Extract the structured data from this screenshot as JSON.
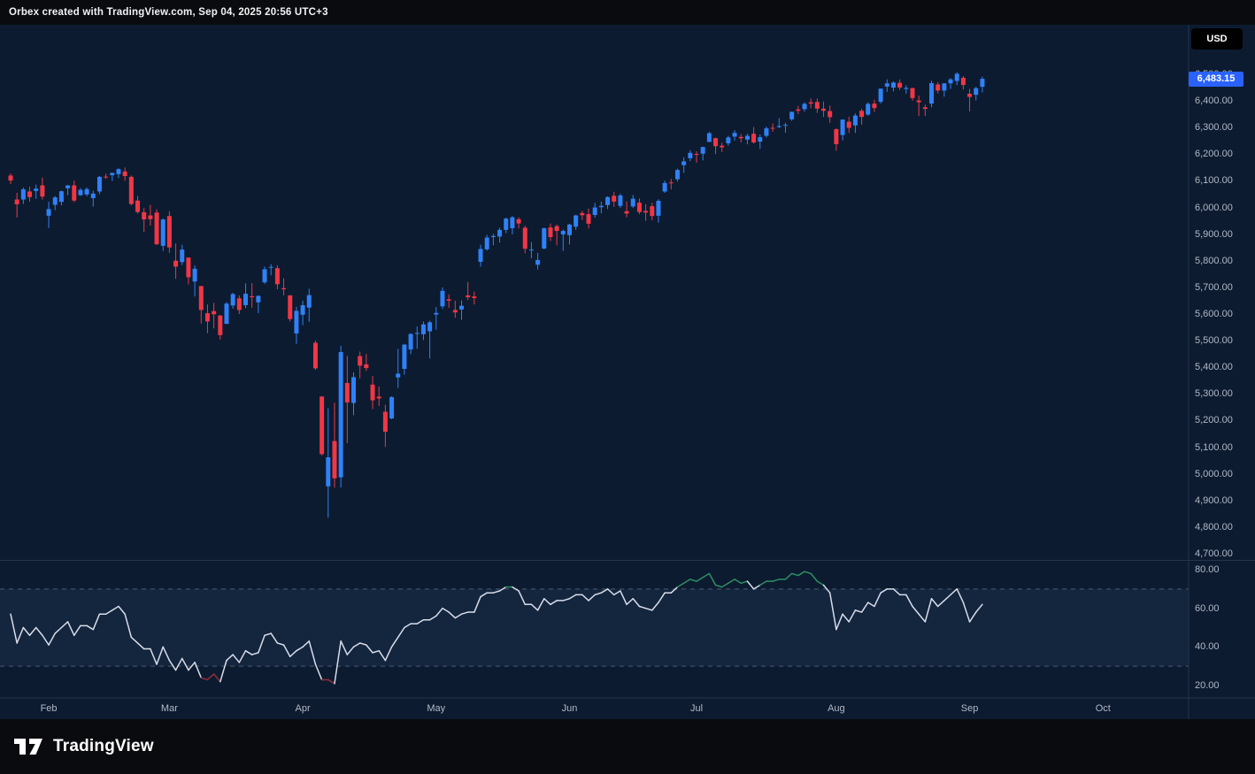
{
  "topbar": {
    "title": "Orbex created with TradingView.com, Sep 04, 2025 20:56 UTC+3"
  },
  "currency_button": {
    "label": "USD"
  },
  "price_badge": {
    "value": "6,483.15"
  },
  "footer": {
    "brand": "TradingView"
  },
  "colors": {
    "chart_bg": "#0c1b30",
    "frame_bg": "#0a0b0e",
    "up": "#2f81f7",
    "down": "#f23645",
    "axis_text": "#b2b8c6",
    "divider": "#28334c",
    "badge_bg": "#2962ff",
    "rsi_line": "#d8dde9",
    "rsi_over": "#2e8f63",
    "rsi_under": "#8f2e3c",
    "rsi_band": "rgba(130,170,255,0.07)",
    "dashed": "#8b93a6"
  },
  "chart_data": {
    "type": "candlestick",
    "title": "",
    "currency": "USD",
    "last_close": 6483.15,
    "price_axis": {
      "ylim_visible": [
        4700,
        6500
      ],
      "ticks": [
        {
          "label": "6,500.00",
          "value": 6500
        },
        {
          "label": "6,400.00",
          "value": 6400
        },
        {
          "label": "6,300.00",
          "value": 6300
        },
        {
          "label": "6,200.00",
          "value": 6200
        },
        {
          "label": "6,100.00",
          "value": 6100
        },
        {
          "label": "6,000.00",
          "value": 6000
        },
        {
          "label": "5,900.00",
          "value": 5900
        },
        {
          "label": "5,800.00",
          "value": 5800
        },
        {
          "label": "5,700.00",
          "value": 5700
        },
        {
          "label": "5,600.00",
          "value": 5600
        },
        {
          "label": "5,500.00",
          "value": 5500
        },
        {
          "label": "5,400.00",
          "value": 5400
        },
        {
          "label": "5,300.00",
          "value": 5300
        },
        {
          "label": "5,200.00",
          "value": 5200
        },
        {
          "label": "5,100.00",
          "value": 5100
        },
        {
          "label": "5,000.00",
          "value": 5000
        },
        {
          "label": "4,900.00",
          "value": 4900
        },
        {
          "label": "4,800.00",
          "value": 4800
        },
        {
          "label": "4,700.00",
          "value": 4700
        }
      ]
    },
    "time_axis": {
      "months": [
        {
          "label": "Feb",
          "index": 6
        },
        {
          "label": "Mar",
          "index": 25
        },
        {
          "label": "Apr",
          "index": 46
        },
        {
          "label": "May",
          "index": 67
        },
        {
          "label": "Jun",
          "index": 88
        },
        {
          "label": "Jul",
          "index": 108
        },
        {
          "label": "Aug",
          "index": 130
        },
        {
          "label": "Sep",
          "index": 151
        },
        {
          "label": "Oct",
          "index": 172
        }
      ]
    },
    "rsi_axis": {
      "ticks": [
        {
          "label": "80.00",
          "value": 80
        },
        {
          "label": "60.00",
          "value": 60
        },
        {
          "label": "40.00",
          "value": 40
        },
        {
          "label": "20.00",
          "value": 20
        }
      ],
      "upper_band": 70,
      "lower_band": 30
    },
    "candles": [
      [
        6120,
        6128,
        6088,
        6101
      ],
      [
        6030,
        6055,
        5962,
        6012
      ],
      [
        6030,
        6075,
        6013,
        6068
      ],
      [
        6060,
        6078,
        6022,
        6039
      ],
      [
        6062,
        6086,
        6032,
        6071
      ],
      [
        6083,
        6112,
        6030,
        6041
      ],
      [
        5969,
        6022,
        5923,
        5994
      ],
      [
        6010,
        6043,
        5990,
        6038
      ],
      [
        6021,
        6063,
        6008,
        6061
      ],
      [
        6072,
        6084,
        6046,
        6083
      ],
      [
        6083,
        6101,
        6020,
        6026
      ],
      [
        6046,
        6073,
        6044,
        6066
      ],
      [
        6049,
        6075,
        6042,
        6069
      ],
      [
        6035,
        6063,
        6003,
        6052
      ],
      [
        6060,
        6118,
        6050,
        6115
      ],
      [
        6116,
        6127,
        6107,
        6115
      ],
      [
        6121,
        6130,
        6099,
        6130
      ],
      [
        6125,
        6147,
        6111,
        6144
      ],
      [
        6135,
        6150,
        6100,
        6118
      ],
      [
        6115,
        6120,
        6008,
        6013
      ],
      [
        6026,
        6043,
        5977,
        5983
      ],
      [
        5982,
        5998,
        5908,
        5955
      ],
      [
        5970,
        6010,
        5932,
        5956
      ],
      [
        5981,
        5993,
        5859,
        5862
      ],
      [
        5856,
        5959,
        5837,
        5955
      ],
      [
        5968,
        5986,
        5830,
        5850
      ],
      [
        5800,
        5865,
        5732,
        5778
      ],
      [
        5795,
        5860,
        5784,
        5842
      ],
      [
        5812,
        5812,
        5711,
        5738
      ],
      [
        5722,
        5783,
        5666,
        5770
      ],
      [
        5705,
        5705,
        5564,
        5615
      ],
      [
        5603,
        5636,
        5528,
        5572
      ],
      [
        5611,
        5642,
        5546,
        5599
      ],
      [
        5594,
        5597,
        5504,
        5521
      ],
      [
        5563,
        5645,
        5563,
        5639
      ],
      [
        5632,
        5680,
        5620,
        5675
      ],
      [
        5659,
        5670,
        5600,
        5615
      ],
      [
        5633,
        5715,
        5622,
        5676
      ],
      [
        5667,
        5716,
        5624,
        5663
      ],
      [
        5644,
        5670,
        5603,
        5668
      ],
      [
        5719,
        5778,
        5713,
        5768
      ],
      [
        5777,
        5787,
        5745,
        5777
      ],
      [
        5772,
        5783,
        5693,
        5712
      ],
      [
        5697,
        5734,
        5670,
        5693
      ],
      [
        5670,
        5671,
        5572,
        5581
      ],
      [
        5527,
        5627,
        5488,
        5612
      ],
      [
        5597,
        5650,
        5558,
        5633
      ],
      [
        5624,
        5695,
        5571,
        5671
      ],
      [
        5492,
        5500,
        5390,
        5396
      ],
      [
        5290,
        5292,
        5069,
        5074
      ],
      [
        4953,
        5246,
        4835,
        5062
      ],
      [
        5123,
        5267,
        4948,
        4983
      ],
      [
        4987,
        5481,
        4949,
        5457
      ],
      [
        5341,
        5443,
        5115,
        5268
      ],
      [
        5266,
        5381,
        5220,
        5363
      ],
      [
        5442,
        5459,
        5358,
        5406
      ],
      [
        5411,
        5450,
        5386,
        5397
      ],
      [
        5335,
        5367,
        5243,
        5276
      ],
      [
        5290,
        5328,
        5255,
        5283
      ],
      [
        5233,
        5259,
        5101,
        5158
      ],
      [
        5208,
        5291,
        5205,
        5288
      ],
      [
        5362,
        5469,
        5323,
        5376
      ],
      [
        5394,
        5488,
        5372,
        5485
      ],
      [
        5467,
        5528,
        5449,
        5525
      ],
      [
        5529,
        5553,
        5469,
        5529
      ],
      [
        5524,
        5572,
        5502,
        5561
      ],
      [
        5535,
        5575,
        5433,
        5569
      ],
      [
        5598,
        5626,
        5541,
        5604
      ],
      [
        5629,
        5700,
        5619,
        5687
      ],
      [
        5655,
        5674,
        5623,
        5650
      ],
      [
        5615,
        5650,
        5586,
        5606
      ],
      [
        5617,
        5651,
        5578,
        5631
      ],
      [
        5670,
        5720,
        5652,
        5663
      ],
      [
        5666,
        5684,
        5636,
        5660
      ],
      [
        5796,
        5860,
        5778,
        5844
      ],
      [
        5843,
        5897,
        5838,
        5887
      ],
      [
        5889,
        5901,
        5858,
        5893
      ],
      [
        5891,
        5924,
        5868,
        5916
      ],
      [
        5916,
        5962,
        5904,
        5958
      ],
      [
        5922,
        5968,
        5899,
        5963
      ],
      [
        5956,
        5963,
        5921,
        5940
      ],
      [
        5924,
        5932,
        5828,
        5845
      ],
      [
        5842,
        5870,
        5809,
        5842
      ],
      [
        5785,
        5829,
        5767,
        5803
      ],
      [
        5846,
        5925,
        5843,
        5922
      ],
      [
        5925,
        5940,
        5874,
        5889
      ],
      [
        5930,
        5936,
        5858,
        5912
      ],
      [
        5899,
        5917,
        5837,
        5912
      ],
      [
        5896,
        5939,
        5861,
        5936
      ],
      [
        5928,
        5973,
        5916,
        5970
      ],
      [
        5979,
        5987,
        5953,
        5971
      ],
      [
        5975,
        5996,
        5921,
        5939
      ],
      [
        5972,
        6017,
        5962,
        6000
      ],
      [
        6001,
        6022,
        5978,
        6006
      ],
      [
        6009,
        6042,
        5994,
        6039
      ],
      [
        6044,
        6059,
        6002,
        6022
      ],
      [
        6006,
        6052,
        5998,
        6045
      ],
      [
        5986,
        6023,
        5963,
        5977
      ],
      [
        6004,
        6047,
        5998,
        6033
      ],
      [
        6018,
        6034,
        5975,
        5983
      ],
      [
        5987,
        6013,
        5950,
        5981
      ],
      [
        6005,
        6018,
        5952,
        5968
      ],
      [
        5969,
        6031,
        5943,
        6025
      ],
      [
        6060,
        6101,
        6055,
        6092
      ],
      [
        6094,
        6107,
        6068,
        6092
      ],
      [
        6106,
        6146,
        6097,
        6141
      ],
      [
        6159,
        6188,
        6130,
        6173
      ],
      [
        6185,
        6215,
        6174,
        6205
      ],
      [
        6201,
        6211,
        6168,
        6198
      ],
      [
        6202,
        6228,
        6177,
        6227
      ],
      [
        6246,
        6284,
        6246,
        6279
      ],
      [
        6260,
        6262,
        6201,
        6230
      ],
      [
        6232,
        6243,
        6208,
        6226
      ],
      [
        6241,
        6269,
        6232,
        6263
      ],
      [
        6266,
        6290,
        6251,
        6280
      ],
      [
        6265,
        6276,
        6244,
        6260
      ],
      [
        6255,
        6277,
        6237,
        6269
      ],
      [
        6277,
        6302,
        6240,
        6244
      ],
      [
        6247,
        6274,
        6220,
        6264
      ],
      [
        6269,
        6304,
        6263,
        6297
      ],
      [
        6299,
        6315,
        6284,
        6297
      ],
      [
        6302,
        6336,
        6298,
        6306
      ],
      [
        6307,
        6318,
        6281,
        6310
      ],
      [
        6331,
        6360,
        6325,
        6359
      ],
      [
        6368,
        6381,
        6351,
        6363
      ],
      [
        6369,
        6395,
        6360,
        6389
      ],
      [
        6395,
        6409,
        6372,
        6390
      ],
      [
        6396,
        6409,
        6355,
        6371
      ],
      [
        6371,
        6398,
        6340,
        6363
      ],
      [
        6362,
        6383,
        6318,
        6339
      ],
      [
        6294,
        6297,
        6213,
        6238
      ],
      [
        6272,
        6331,
        6252,
        6330
      ],
      [
        6322,
        6341,
        6280,
        6299
      ],
      [
        6308,
        6353,
        6280,
        6345
      ],
      [
        6363,
        6370,
        6311,
        6340
      ],
      [
        6349,
        6395,
        6344,
        6389
      ],
      [
        6390,
        6405,
        6358,
        6373
      ],
      [
        6397,
        6447,
        6390,
        6446
      ],
      [
        6454,
        6481,
        6434,
        6466
      ],
      [
        6450,
        6473,
        6436,
        6469
      ],
      [
        6468,
        6481,
        6441,
        6450
      ],
      [
        6445,
        6459,
        6427,
        6449
      ],
      [
        6448,
        6450,
        6401,
        6411
      ],
      [
        6402,
        6420,
        6343,
        6395
      ],
      [
        6376,
        6386,
        6344,
        6370
      ],
      [
        6390,
        6476,
        6376,
        6467
      ],
      [
        6462,
        6471,
        6428,
        6439
      ],
      [
        6439,
        6467,
        6416,
        6466
      ],
      [
        6466,
        6486,
        6445,
        6481
      ],
      [
        6475,
        6508,
        6459,
        6502
      ],
      [
        6487,
        6493,
        6443,
        6460
      ],
      [
        6427,
        6445,
        6361,
        6415
      ],
      [
        6423,
        6453,
        6402,
        6448
      ],
      [
        6453,
        6491,
        6432,
        6483.15
      ]
    ],
    "rsi": [
      57,
      42,
      50,
      46,
      50,
      46,
      41,
      47,
      50,
      53,
      46,
      51,
      51,
      49,
      57,
      57,
      59,
      61,
      57,
      45,
      42,
      39,
      39,
      31,
      40,
      33,
      28,
      34,
      28,
      32,
      24,
      23,
      26,
      22,
      33,
      36,
      32,
      38,
      36,
      37,
      46,
      47,
      42,
      41,
      35,
      38,
      40,
      43,
      31,
      23,
      23,
      21,
      43,
      36,
      40,
      42,
      41,
      37,
      38,
      33,
      40,
      45,
      50,
      52,
      52,
      54,
      54,
      56,
      60,
      58,
      55,
      57,
      58,
      58,
      66,
      68,
      68,
      69,
      71,
      71,
      69,
      62,
      62,
      59,
      65,
      62,
      64,
      64,
      65,
      67,
      67,
      64,
      67,
      68,
      70,
      67,
      69,
      62,
      65,
      61,
      60,
      59,
      63,
      68,
      68,
      71,
      73,
      75,
      74,
      76,
      78,
      72,
      71,
      73,
      75,
      73,
      74,
      70,
      72,
      74,
      74,
      75,
      75,
      78,
      77,
      79,
      78,
      74,
      72,
      68,
      49,
      57,
      53,
      59,
      58,
      63,
      61,
      68,
      70,
      70,
      67,
      67,
      61,
      57,
      53,
      65,
      61,
      64,
      67,
      70,
      63,
      53,
      58,
      62
    ]
  }
}
